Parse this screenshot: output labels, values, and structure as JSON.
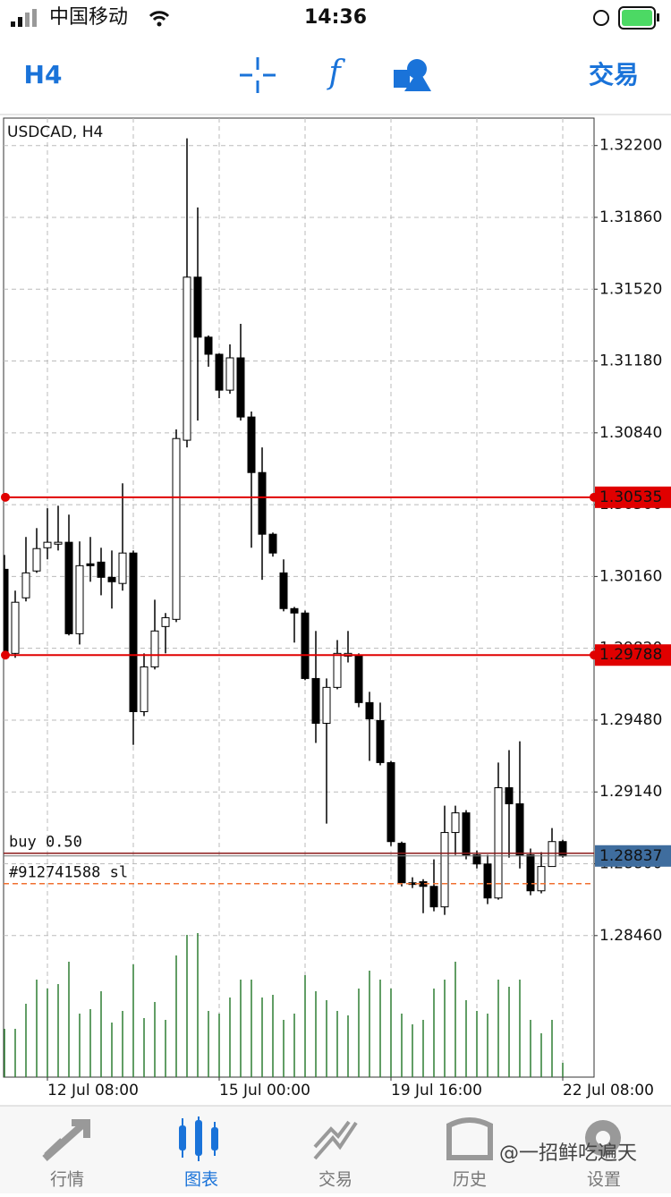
{
  "status_bar": {
    "carrier": "中国移动",
    "time": "14:36"
  },
  "toolbar": {
    "timeframe": "H4",
    "action": "交易"
  },
  "chart_data": {
    "type": "candlestick",
    "title": "USDCAD, H4",
    "categories": [
      null,
      null,
      null,
      null,
      "12 Jul 08:00",
      null,
      null,
      null,
      null,
      null,
      null,
      null,
      null,
      null,
      null,
      null,
      null,
      null,
      null,
      null,
      "15 Jul 00:00",
      null,
      null,
      null,
      null,
      null,
      null,
      null,
      null,
      null,
      null,
      null,
      null,
      null,
      null,
      null,
      "19 Jul 16:00",
      null,
      null,
      null,
      null,
      null,
      null,
      null,
      null,
      null,
      null,
      null,
      null,
      null,
      null,
      null,
      "22 Jul 08:00"
    ],
    "open": [
      1.30194,
      1.29796,
      1.30059,
      1.30186,
      1.30296,
      1.30313,
      1.30322,
      1.29889,
      1.3022,
      1.30228,
      1.30156,
      1.30127,
      1.30271,
      1.2952,
      1.29732,
      1.29923,
      1.29957,
      1.30805,
      1.31577,
      1.31293,
      1.31212,
      1.31042,
      1.31195,
      1.30915,
      1.30652,
      1.3036,
      1.30177,
      1.30008,
      1.29987,
      1.29677,
      1.29465,
      1.29635,
      1.29783,
      1.29787,
      1.29563,
      1.29478,
      1.29279,
      1.28897,
      1.2871,
      1.28715,
      1.28693,
      1.28596,
      1.28948,
      1.29041,
      1.28842,
      1.28799,
      1.28638,
      1.2916,
      1.29084,
      1.28842,
      1.28672,
      1.28787,
      1.28905
    ],
    "high": [
      1.30262,
      1.30093,
      1.30347,
      1.30389,
      1.30483,
      1.30495,
      1.30453,
      1.30326,
      1.30347,
      1.30296,
      1.30283,
      1.30601,
      1.30283,
      1.29796,
      1.3005,
      1.29987,
      1.30856,
      1.32234,
      1.31907,
      1.31301,
      1.31216,
      1.31259,
      1.31356,
      1.30941,
      1.30771,
      1.30368,
      1.30241,
      1.30016,
      1.29999,
      1.29902,
      1.29677,
      1.29859,
      1.29902,
      1.29796,
      1.29614,
      1.29563,
      1.29287,
      1.28905,
      1.28736,
      1.28727,
      1.28821,
      1.29075,
      1.29075,
      1.29054,
      1.28863,
      1.28842,
      1.29279,
      1.29338,
      1.2938,
      1.28872,
      1.28855,
      1.28969,
      1.28914
    ],
    "low": [
      1.29775,
      1.29775,
      1.30042,
      1.30177,
      1.30241,
      1.30283,
      1.29881,
      1.29838,
      1.30135,
      1.30071,
      1.30008,
      1.30093,
      1.29363,
      1.29499,
      1.2972,
      1.29796,
      1.29944,
      1.30771,
      1.30898,
      1.31153,
      1.31004,
      1.31025,
      1.30898,
      1.30296,
      1.30144,
      1.30254,
      1.29995,
      1.29847,
      1.29669,
      1.29372,
      1.2899,
      1.29626,
      1.29753,
      1.29541,
      1.29287,
      1.29266,
      1.28884,
      1.28693,
      1.28685,
      1.28566,
      1.28575,
      1.28558,
      1.28842,
      1.28821,
      1.28778,
      1.28609,
      1.2863,
      1.28829,
      1.28778,
      1.28651,
      1.2866,
      1.28787,
      1.28829
    ],
    "close": [
      1.29796,
      1.30038,
      1.30177,
      1.30292,
      1.30322,
      1.30322,
      1.29889,
      1.30211,
      1.30211,
      1.30156,
      1.30135,
      1.30271,
      1.2952,
      1.29732,
      1.29902,
      1.29965,
      1.30813,
      1.31577,
      1.31293,
      1.31212,
      1.31042,
      1.31195,
      1.30915,
      1.30652,
      1.3036,
      1.30271,
      1.30008,
      1.29987,
      1.29677,
      1.29465,
      1.29635,
      1.29796,
      1.29796,
      1.29563,
      1.29486,
      1.29279,
      1.28905,
      1.2871,
      1.28702,
      1.28693,
      1.28596,
      1.28948,
      1.29041,
      1.28842,
      1.28799,
      1.28638,
      1.2916,
      1.29084,
      1.28842,
      1.28672,
      1.28787,
      1.28905,
      1.28837
    ],
    "volume": [
      54,
      54,
      82,
      109,
      99,
      104,
      129,
      71,
      76,
      96,
      61,
      74,
      126,
      66,
      84,
      64,
      136,
      159,
      161,
      74,
      71,
      89,
      109,
      109,
      89,
      92,
      64,
      71,
      114,
      96,
      86,
      74,
      69,
      99,
      119,
      109,
      99,
      71,
      59,
      64,
      99,
      109,
      129,
      86,
      74,
      71,
      109,
      101,
      109,
      64,
      49,
      64,
      16
    ],
    "up_color": "#ffffff",
    "down_color": "#000000",
    "volume_color": "#2e7d32",
    "ylim": [
      1.2779,
      1.3233
    ],
    "yticks": [
      {
        "value": 1.322,
        "label": "1.32200"
      },
      {
        "value": 1.3186,
        "label": "1.31860"
      },
      {
        "value": 1.3152,
        "label": "1.31520"
      },
      {
        "value": 1.3118,
        "label": "1.31180"
      },
      {
        "value": 1.3084,
        "label": "1.30840"
      },
      {
        "value": 1.305,
        "label": "1.30500"
      },
      {
        "value": 1.3016,
        "label": "1.30160"
      },
      {
        "value": 1.2982,
        "label": "1.29820"
      },
      {
        "value": 1.2948,
        "label": "1.29480"
      },
      {
        "value": 1.2914,
        "label": "1.29140"
      },
      {
        "value": 1.288,
        "label": "1.28800"
      },
      {
        "value": 1.2846,
        "label": "1.28460"
      }
    ],
    "grid": true,
    "levels": [
      1.30535,
      1.29788
    ],
    "level_color": "#e00000",
    "orders": [
      {
        "label": "buy 0.50",
        "value": 1.2885,
        "color": "#8b1a1a"
      },
      {
        "label": "#912741588 sl",
        "value": 1.28706,
        "color": "#f07030"
      }
    ],
    "bid": 1.28837
  },
  "tab_bar": {
    "tabs": [
      "行情",
      "图表",
      "交易",
      "历史",
      "设置"
    ],
    "active": 1
  },
  "watermark": "@一招鲜吃遍天"
}
